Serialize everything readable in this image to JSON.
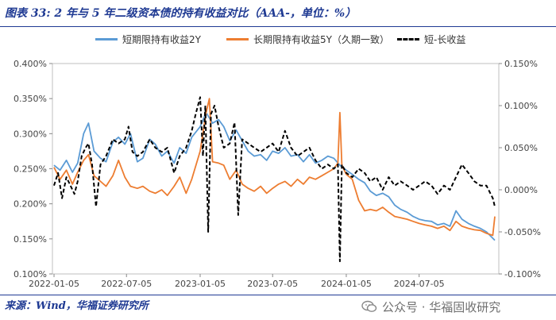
{
  "title": "图表 33: 2 年与 5 年二级资本债的持有收益对比（AAA-，单位：%）",
  "source": "来源：Wind，华福证券研究所",
  "watermark": "公众号 · 华福固收研究",
  "colors": {
    "series_2y": "#5b9bd5",
    "series_5y": "#ed7d31",
    "spread": "#000000",
    "rule": "#1f3a93",
    "title": "#1f3a93"
  },
  "chart_data": {
    "type": "line",
    "title": "图表 33: 2 年与 5 年二级资本债的持有收益对比（AAA-，单位：%）",
    "legend_position": "top",
    "grid": false,
    "x_range": [
      "2022-01-01",
      "2025-01-20"
    ],
    "x_tick_labels": [
      "2022-01-05",
      "2022-07-05",
      "2023-01-05",
      "2023-07-05",
      "2024-01-05",
      "2024-07-05"
    ],
    "y_left": {
      "min": 0.1,
      "max": 0.4,
      "step": 0.05,
      "tick_labels": [
        "0.100%",
        "0.150%",
        "0.200%",
        "0.250%",
        "0.300%",
        "0.350%",
        "0.400%"
      ]
    },
    "y_right": {
      "min": -0.1,
      "max": 0.15,
      "step": 0.05,
      "tick_labels": [
        "-0.100%",
        "-0.050%",
        "0.000%",
        "0.050%",
        "0.100%",
        "0.150%"
      ]
    },
    "series": [
      {
        "name": "短期限持有收益2Y",
        "axis": "left",
        "style": "solid",
        "points": [
          [
            "2022-01-05",
            0.255
          ],
          [
            "2022-01-20",
            0.248
          ],
          [
            "2022-02-05",
            0.262
          ],
          [
            "2022-02-20",
            0.245
          ],
          [
            "2022-03-05",
            0.258
          ],
          [
            "2022-03-20",
            0.3
          ],
          [
            "2022-04-01",
            0.315
          ],
          [
            "2022-04-15",
            0.275
          ],
          [
            "2022-05-01",
            0.265
          ],
          [
            "2022-05-15",
            0.26
          ],
          [
            "2022-06-01",
            0.288
          ],
          [
            "2022-06-15",
            0.295
          ],
          [
            "2022-07-01",
            0.285
          ],
          [
            "2022-07-15",
            0.3
          ],
          [
            "2022-08-01",
            0.26
          ],
          [
            "2022-08-15",
            0.265
          ],
          [
            "2022-09-01",
            0.292
          ],
          [
            "2022-09-15",
            0.285
          ],
          [
            "2022-10-01",
            0.268
          ],
          [
            "2022-10-15",
            0.275
          ],
          [
            "2022-11-01",
            0.258
          ],
          [
            "2022-11-15",
            0.28
          ],
          [
            "2022-12-01",
            0.272
          ],
          [
            "2022-12-15",
            0.295
          ],
          [
            "2023-01-05",
            0.31
          ],
          [
            "2023-01-20",
            0.33
          ],
          [
            "2023-02-05",
            0.315
          ],
          [
            "2023-02-20",
            0.32
          ],
          [
            "2023-03-05",
            0.31
          ],
          [
            "2023-03-20",
            0.29
          ],
          [
            "2023-04-05",
            0.305
          ],
          [
            "2023-04-20",
            0.29
          ],
          [
            "2023-05-05",
            0.275
          ],
          [
            "2023-05-20",
            0.268
          ],
          [
            "2023-06-05",
            0.27
          ],
          [
            "2023-06-20",
            0.262
          ],
          [
            "2023-07-05",
            0.275
          ],
          [
            "2023-07-20",
            0.272
          ],
          [
            "2023-08-05",
            0.28
          ],
          [
            "2023-08-20",
            0.268
          ],
          [
            "2023-09-05",
            0.27
          ],
          [
            "2023-09-20",
            0.26
          ],
          [
            "2023-10-05",
            0.27
          ],
          [
            "2023-10-20",
            0.258
          ],
          [
            "2023-11-05",
            0.262
          ],
          [
            "2023-11-20",
            0.268
          ],
          [
            "2023-12-05",
            0.265
          ],
          [
            "2023-12-20",
            0.255
          ],
          [
            "2024-01-05",
            0.248
          ],
          [
            "2024-01-20",
            0.242
          ],
          [
            "2024-02-05",
            0.235
          ],
          [
            "2024-02-20",
            0.23
          ],
          [
            "2024-03-05",
            0.218
          ],
          [
            "2024-03-20",
            0.212
          ],
          [
            "2024-04-05",
            0.215
          ],
          [
            "2024-04-20",
            0.21
          ],
          [
            "2024-05-05",
            0.198
          ],
          [
            "2024-05-20",
            0.192
          ],
          [
            "2024-06-05",
            0.188
          ],
          [
            "2024-06-20",
            0.182
          ],
          [
            "2024-07-05",
            0.178
          ],
          [
            "2024-07-20",
            0.176
          ],
          [
            "2024-08-05",
            0.175
          ],
          [
            "2024-08-20",
            0.17
          ],
          [
            "2024-09-05",
            0.172
          ],
          [
            "2024-09-20",
            0.168
          ],
          [
            "2024-10-05",
            0.19
          ],
          [
            "2024-10-20",
            0.178
          ],
          [
            "2024-11-05",
            0.172
          ],
          [
            "2024-11-20",
            0.168
          ],
          [
            "2024-12-05",
            0.165
          ],
          [
            "2024-12-20",
            0.16
          ],
          [
            "2025-01-10",
            0.148
          ]
        ]
      },
      {
        "name": "长期限持有收益5Y（久期一致）",
        "axis": "left",
        "style": "solid",
        "points": [
          [
            "2022-01-05",
            0.252
          ],
          [
            "2022-01-20",
            0.235
          ],
          [
            "2022-02-05",
            0.248
          ],
          [
            "2022-02-20",
            0.228
          ],
          [
            "2022-03-05",
            0.245
          ],
          [
            "2022-03-20",
            0.262
          ],
          [
            "2022-04-01",
            0.27
          ],
          [
            "2022-04-15",
            0.24
          ],
          [
            "2022-05-01",
            0.232
          ],
          [
            "2022-05-15",
            0.225
          ],
          [
            "2022-06-01",
            0.24
          ],
          [
            "2022-06-15",
            0.262
          ],
          [
            "2022-07-01",
            0.238
          ],
          [
            "2022-07-15",
            0.225
          ],
          [
            "2022-08-01",
            0.222
          ],
          [
            "2022-08-15",
            0.225
          ],
          [
            "2022-09-01",
            0.218
          ],
          [
            "2022-09-15",
            0.215
          ],
          [
            "2022-10-01",
            0.22
          ],
          [
            "2022-10-15",
            0.212
          ],
          [
            "2022-11-01",
            0.225
          ],
          [
            "2022-11-15",
            0.238
          ],
          [
            "2022-12-01",
            0.215
          ],
          [
            "2022-12-15",
            0.235
          ],
          [
            "2023-01-05",
            0.275
          ],
          [
            "2023-01-20",
            0.33
          ],
          [
            "2023-01-28",
            0.35
          ],
          [
            "2023-02-05",
            0.26
          ],
          [
            "2023-02-20",
            0.258
          ],
          [
            "2023-03-05",
            0.255
          ],
          [
            "2023-03-20",
            0.235
          ],
          [
            "2023-04-05",
            0.248
          ],
          [
            "2023-04-20",
            0.228
          ],
          [
            "2023-05-05",
            0.222
          ],
          [
            "2023-05-20",
            0.218
          ],
          [
            "2023-06-05",
            0.225
          ],
          [
            "2023-06-20",
            0.215
          ],
          [
            "2023-07-05",
            0.222
          ],
          [
            "2023-07-20",
            0.228
          ],
          [
            "2023-08-05",
            0.232
          ],
          [
            "2023-08-20",
            0.225
          ],
          [
            "2023-09-05",
            0.235
          ],
          [
            "2023-09-20",
            0.228
          ],
          [
            "2023-10-05",
            0.238
          ],
          [
            "2023-10-20",
            0.235
          ],
          [
            "2023-11-05",
            0.24
          ],
          [
            "2023-11-20",
            0.245
          ],
          [
            "2023-12-05",
            0.25
          ],
          [
            "2023-12-15",
            0.258
          ],
          [
            "2023-12-20",
            0.33
          ],
          [
            "2023-12-25",
            0.255
          ],
          [
            "2024-01-05",
            0.242
          ],
          [
            "2024-01-20",
            0.235
          ],
          [
            "2024-02-05",
            0.205
          ],
          [
            "2024-02-20",
            0.19
          ],
          [
            "2024-03-05",
            0.192
          ],
          [
            "2024-03-20",
            0.19
          ],
          [
            "2024-04-05",
            0.195
          ],
          [
            "2024-04-20",
            0.188
          ],
          [
            "2024-05-05",
            0.182
          ],
          [
            "2024-05-20",
            0.18
          ],
          [
            "2024-06-05",
            0.178
          ],
          [
            "2024-06-20",
            0.175
          ],
          [
            "2024-07-05",
            0.172
          ],
          [
            "2024-07-20",
            0.17
          ],
          [
            "2024-08-05",
            0.168
          ],
          [
            "2024-08-20",
            0.165
          ],
          [
            "2024-09-05",
            0.168
          ],
          [
            "2024-09-20",
            0.162
          ],
          [
            "2024-10-05",
            0.175
          ],
          [
            "2024-10-20",
            0.168
          ],
          [
            "2024-11-05",
            0.165
          ],
          [
            "2024-11-20",
            0.163
          ],
          [
            "2024-12-05",
            0.162
          ],
          [
            "2024-12-20",
            0.158
          ],
          [
            "2025-01-05",
            0.155
          ],
          [
            "2025-01-10",
            0.182
          ]
        ]
      },
      {
        "name": "短-长收益",
        "axis": "right",
        "style": "dashed",
        "points": [
          [
            "2022-01-05",
            0.005
          ],
          [
            "2022-01-15",
            0.02
          ],
          [
            "2022-01-25",
            -0.01
          ],
          [
            "2022-02-05",
            0.015
          ],
          [
            "2022-02-15",
            0.005
          ],
          [
            "2022-02-25",
            -0.005
          ],
          [
            "2022-03-05",
            0.01
          ],
          [
            "2022-03-15",
            0.04
          ],
          [
            "2022-03-25",
            0.05
          ],
          [
            "2022-04-01",
            0.055
          ],
          [
            "2022-04-10",
            0.03
          ],
          [
            "2022-04-20",
            -0.02
          ],
          [
            "2022-05-01",
            0.03
          ],
          [
            "2022-05-15",
            0.04
          ],
          [
            "2022-06-01",
            0.06
          ],
          [
            "2022-06-15",
            0.055
          ],
          [
            "2022-07-01",
            0.06
          ],
          [
            "2022-07-10",
            0.075
          ],
          [
            "2022-07-20",
            0.045
          ],
          [
            "2022-08-01",
            0.04
          ],
          [
            "2022-08-15",
            0.045
          ],
          [
            "2022-09-01",
            0.06
          ],
          [
            "2022-09-15",
            0.05
          ],
          [
            "2022-10-01",
            0.045
          ],
          [
            "2022-10-15",
            0.05
          ],
          [
            "2022-11-01",
            0.02
          ],
          [
            "2022-11-15",
            0.04
          ],
          [
            "2022-12-01",
            0.05
          ],
          [
            "2022-12-15",
            0.07
          ],
          [
            "2022-12-25",
            0.09
          ],
          [
            "2023-01-05",
            0.11
          ],
          [
            "2023-01-12",
            0.04
          ],
          [
            "2023-01-18",
            0.1
          ],
          [
            "2023-01-25",
            -0.05
          ],
          [
            "2023-02-01",
            0.09
          ],
          [
            "2023-02-10",
            0.1
          ],
          [
            "2023-02-20",
            0.075
          ],
          [
            "2023-03-05",
            0.05
          ],
          [
            "2023-03-20",
            0.055
          ],
          [
            "2023-04-01",
            0.08
          ],
          [
            "2023-04-10",
            -0.03
          ],
          [
            "2023-04-20",
            0.06
          ],
          [
            "2023-05-05",
            0.055
          ],
          [
            "2023-05-20",
            0.05
          ],
          [
            "2023-06-05",
            0.045
          ],
          [
            "2023-06-20",
            0.05
          ],
          [
            "2023-07-05",
            0.055
          ],
          [
            "2023-07-20",
            0.045
          ],
          [
            "2023-08-05",
            0.07
          ],
          [
            "2023-08-20",
            0.05
          ],
          [
            "2023-09-05",
            0.04
          ],
          [
            "2023-09-20",
            0.045
          ],
          [
            "2023-10-05",
            0.05
          ],
          [
            "2023-10-20",
            0.035
          ],
          [
            "2023-11-05",
            0.025
          ],
          [
            "2023-11-20",
            0.03
          ],
          [
            "2023-12-05",
            0.025
          ],
          [
            "2023-12-15",
            0.03
          ],
          [
            "2023-12-20",
            -0.085
          ],
          [
            "2023-12-25",
            0.03
          ],
          [
            "2024-01-05",
            0.02
          ],
          [
            "2024-01-20",
            0.015
          ],
          [
            "2024-02-05",
            0.025
          ],
          [
            "2024-02-20",
            0.02
          ],
          [
            "2024-03-05",
            0.01
          ],
          [
            "2024-03-20",
            0.015
          ],
          [
            "2024-04-05",
            0.0
          ],
          [
            "2024-04-20",
            0.015
          ],
          [
            "2024-05-05",
            0.005
          ],
          [
            "2024-05-20",
            0.01
          ],
          [
            "2024-06-05",
            0.005
          ],
          [
            "2024-06-20",
            0.0
          ],
          [
            "2024-07-05",
            0.005
          ],
          [
            "2024-07-20",
            0.01
          ],
          [
            "2024-08-05",
            0.005
          ],
          [
            "2024-08-20",
            -0.005
          ],
          [
            "2024-09-05",
            0.005
          ],
          [
            "2024-09-20",
            0.0
          ],
          [
            "2024-10-05",
            0.015
          ],
          [
            "2024-10-20",
            0.03
          ],
          [
            "2024-11-05",
            0.02
          ],
          [
            "2024-11-20",
            0.01
          ],
          [
            "2024-12-05",
            0.005
          ],
          [
            "2024-12-20",
            0.005
          ],
          [
            "2025-01-05",
            -0.01
          ],
          [
            "2025-01-10",
            -0.02
          ]
        ]
      }
    ]
  }
}
